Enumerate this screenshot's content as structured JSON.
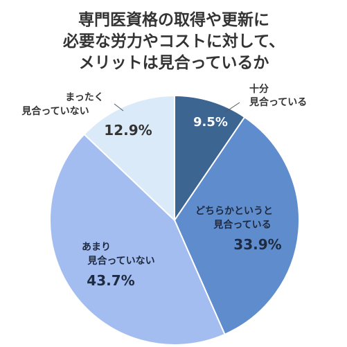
{
  "chart_data": {
    "type": "pie",
    "title_lines": [
      "専門医資格の取得や更新に",
      "必要な労力やコストに対して、",
      "メリットは見合っているか"
    ],
    "slices": [
      {
        "label_lines": [
          "十分",
          "見合っている"
        ],
        "value": 9.5,
        "value_label": "9.5%",
        "color": "#3c6591"
      },
      {
        "label_lines": [
          "どちらかというと",
          "見合っている"
        ],
        "value": 33.9,
        "value_label": "33.9%",
        "color": "#5e8ccd"
      },
      {
        "label_lines": [
          "あまり",
          "見合っていない"
        ],
        "value": 43.7,
        "value_label": "43.7%",
        "color": "#a3bdf0"
      },
      {
        "label_lines": [
          "まったく",
          "見合っていない"
        ],
        "value": 12.9,
        "value_label": "12.9%",
        "color": "#dbeaf9"
      }
    ],
    "start_angle": "12 o'clock",
    "direction": "clockwise",
    "legend": "none"
  }
}
